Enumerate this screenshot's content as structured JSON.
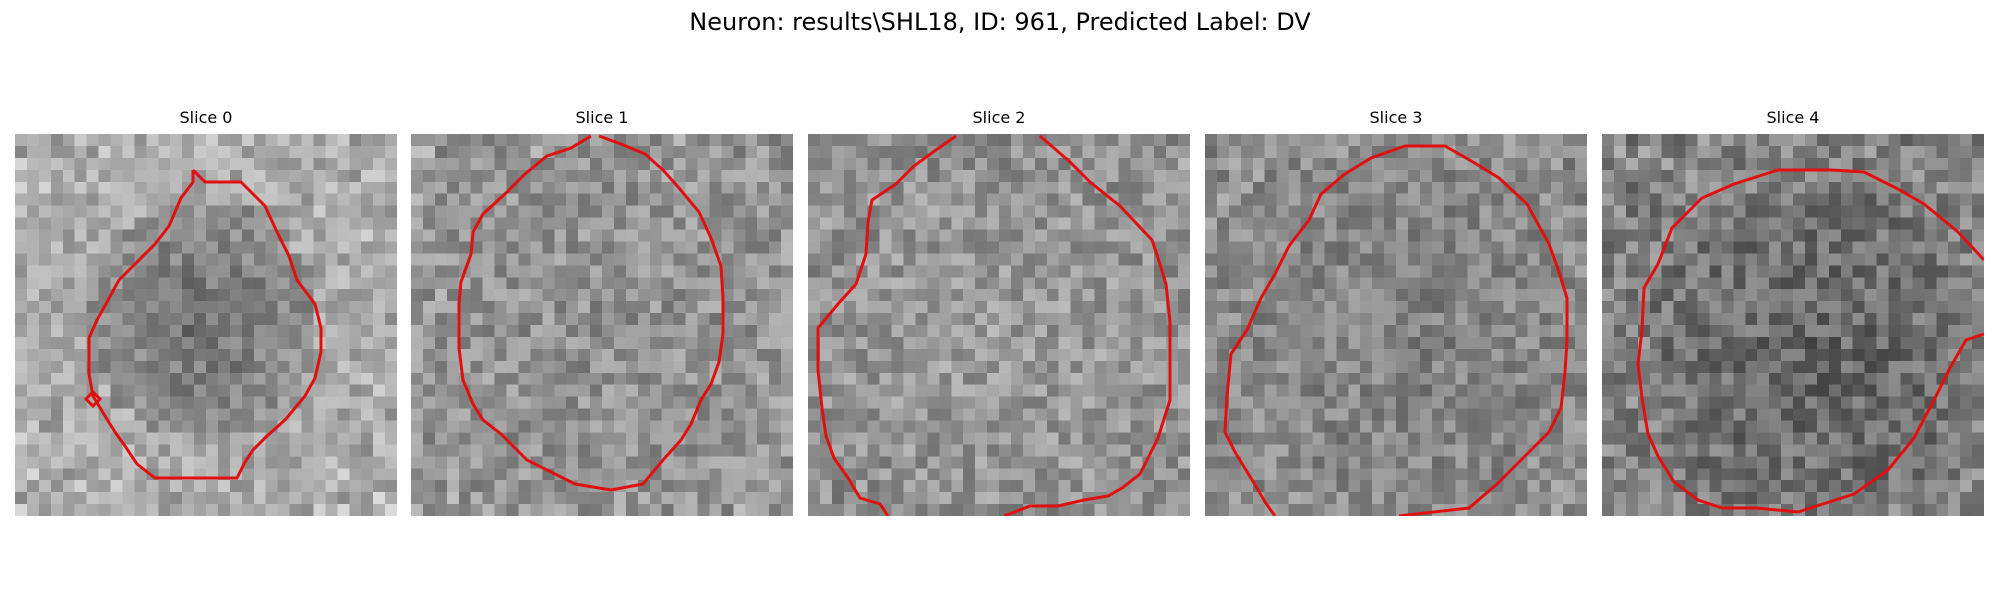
{
  "figure": {
    "title": "Neuron: results\\SHL18, ID: 961, Predicted Label: DV",
    "contour_color": "#e01010"
  },
  "panels": [
    {
      "title": "Slice 0",
      "contour": "roi-outline-small-oval",
      "texture": "bright-surround-dark-center"
    },
    {
      "title": "Slice 1",
      "contour": "roi-outline-large-oval",
      "texture": "mid-gray-noise"
    },
    {
      "title": "Slice 2",
      "contour": "roi-outline-large-cut-at-edges",
      "texture": "mid-gray-noise"
    },
    {
      "title": "Slice 3",
      "contour": "roi-outline-large-cut-at-edges",
      "texture": "mid-gray-noise"
    },
    {
      "title": "Slice 4",
      "contour": "roi-outline-large-cut-at-edges",
      "texture": "darker-noise"
    }
  ]
}
